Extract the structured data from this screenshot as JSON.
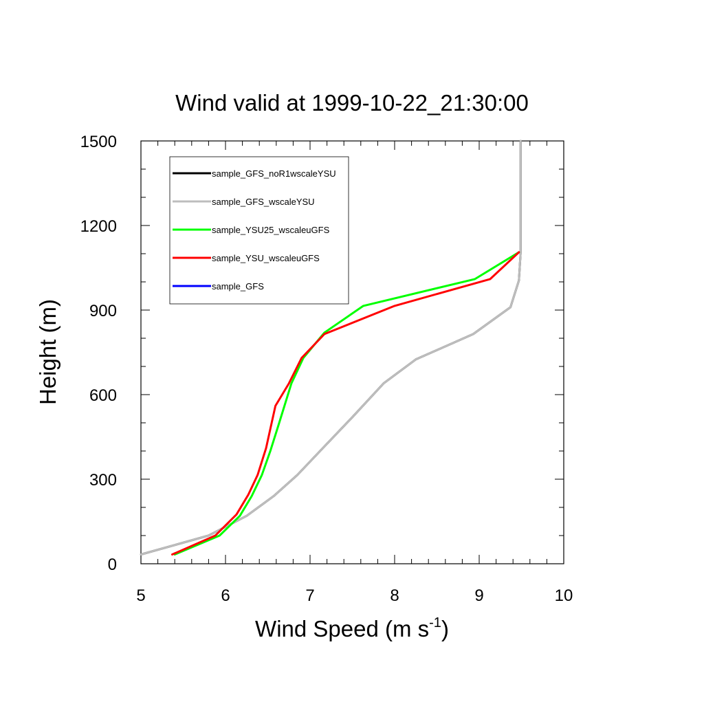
{
  "chart_data": {
    "type": "line",
    "title": "Wind valid at 1999-10-22_21:30:00",
    "xlabel": "Wind Speed (m s",
    "xlabel_sup": "-1",
    "xlabel_end": ")",
    "ylabel": "Height (m)",
    "xlim": [
      5,
      10
    ],
    "ylim": [
      0,
      1500
    ],
    "x_ticks": [
      "5",
      "6",
      "7",
      "8",
      "9",
      "10"
    ],
    "y_ticks": [
      "0",
      "300",
      "600",
      "900",
      "1200",
      "1500"
    ],
    "legend_position": "top-left",
    "series": [
      {
        "name": "sample_GFS_noR1wscaleYSU",
        "color": "#000000",
        "points": [
          [
            5.0,
            33
          ],
          [
            5.8,
            100
          ],
          [
            6.25,
            170
          ],
          [
            6.57,
            240
          ],
          [
            6.85,
            315
          ],
          [
            7.15,
            410
          ],
          [
            7.5,
            520
          ],
          [
            7.87,
            640
          ],
          [
            8.25,
            725
          ],
          [
            8.93,
            815
          ],
          [
            9.37,
            910
          ],
          [
            9.47,
            1005
          ],
          [
            9.49,
            1105
          ],
          [
            9.49,
            1500
          ]
        ]
      },
      {
        "name": "sample_GFS_wscaleYSU",
        "color": "#bdbdbd",
        "points": [
          [
            5.0,
            33
          ],
          [
            5.8,
            100
          ],
          [
            6.25,
            170
          ],
          [
            6.57,
            240
          ],
          [
            6.85,
            315
          ],
          [
            7.15,
            410
          ],
          [
            7.5,
            520
          ],
          [
            7.87,
            640
          ],
          [
            8.25,
            725
          ],
          [
            8.93,
            815
          ],
          [
            9.37,
            910
          ],
          [
            9.47,
            1005
          ],
          [
            9.49,
            1105
          ],
          [
            9.49,
            1500
          ]
        ]
      },
      {
        "name": "sample_YSU25_wscaleuGFS",
        "color": "#00ff00",
        "points": [
          [
            5.4,
            33
          ],
          [
            5.93,
            100
          ],
          [
            6.17,
            170
          ],
          [
            6.31,
            240
          ],
          [
            6.43,
            315
          ],
          [
            6.53,
            400
          ],
          [
            6.63,
            495
          ],
          [
            6.78,
            640
          ],
          [
            6.92,
            730
          ],
          [
            7.17,
            820
          ],
          [
            7.63,
            915
          ],
          [
            8.95,
            1010
          ],
          [
            9.47,
            1105
          ]
        ]
      },
      {
        "name": "sample_YSU_wscaleuGFS",
        "color": "#ff0000",
        "points": [
          [
            5.37,
            33
          ],
          [
            5.88,
            100
          ],
          [
            6.13,
            175
          ],
          [
            6.27,
            245
          ],
          [
            6.38,
            315
          ],
          [
            6.48,
            410
          ],
          [
            6.59,
            560
          ],
          [
            6.75,
            640
          ],
          [
            6.9,
            730
          ],
          [
            7.17,
            815
          ],
          [
            8.0,
            915
          ],
          [
            9.13,
            1010
          ],
          [
            9.47,
            1105
          ]
        ]
      },
      {
        "name": "sample_GFS",
        "color": "#0000ff",
        "points": []
      }
    ]
  }
}
